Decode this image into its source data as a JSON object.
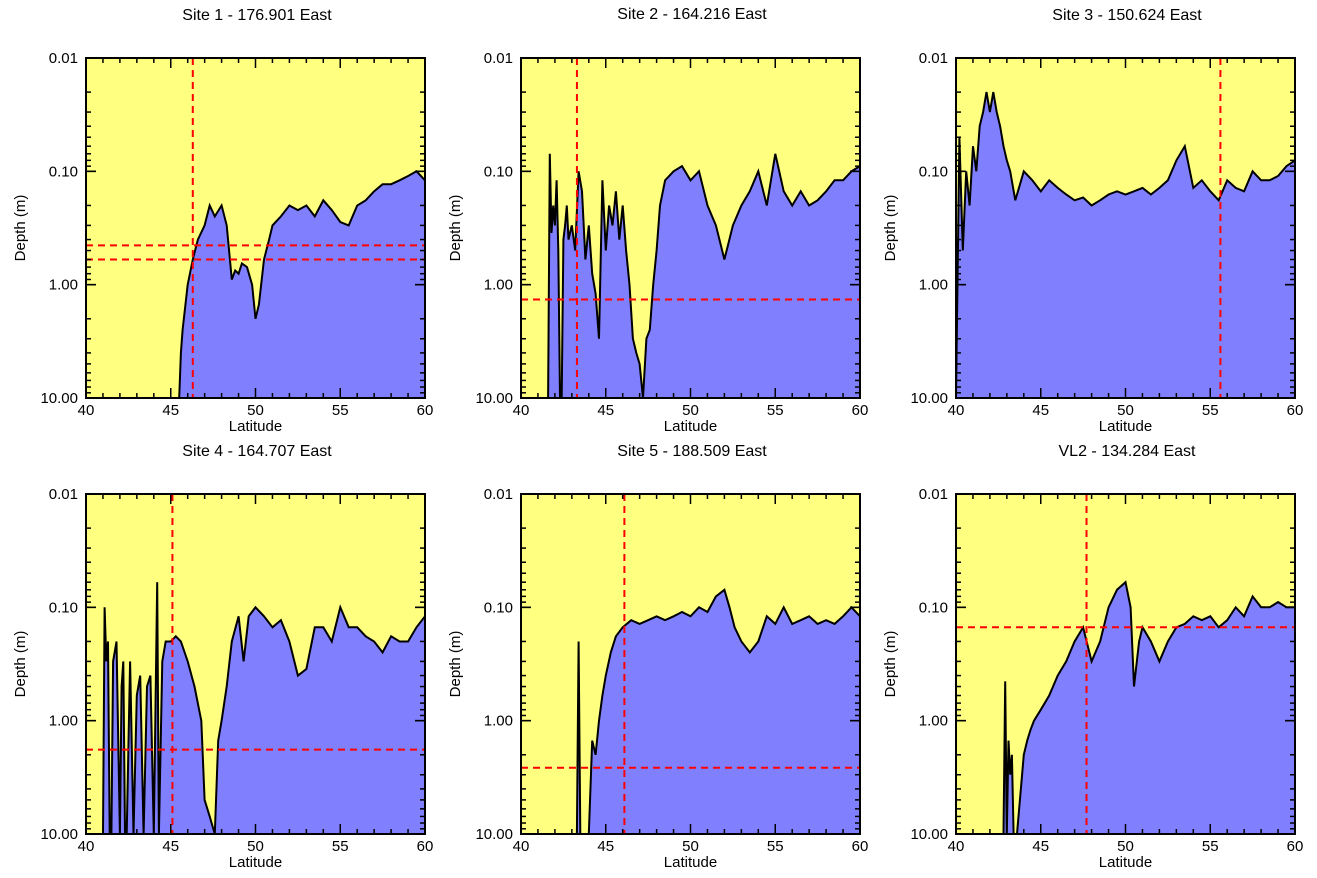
{
  "colors": {
    "background_fill": "#ffff80",
    "depth_fill": "#8080ff",
    "profile_line": "#000000",
    "guide_line": "#ff0000"
  },
  "chart_data": [
    {
      "type": "area",
      "title": "Site 1 - 176.901 East",
      "xlabel": "Latitude",
      "ylabel": "Depth (m)",
      "xlim": [
        40,
        60
      ],
      "ylim": [
        10.0,
        0.01
      ],
      "yscale": "log",
      "y_inverted": true,
      "xticks": [
        "40",
        "45",
        "50",
        "55",
        "60"
      ],
      "yticks": [
        "0.01",
        "0.10",
        "1.00",
        "10.00"
      ],
      "grid": false,
      "guides": {
        "vertical": [
          46.3
        ],
        "horizontal": [
          0.45,
          0.6
        ]
      },
      "x": [
        45.5,
        45.6,
        45.7,
        46.0,
        46.3,
        46.6,
        47.0,
        47.3,
        47.6,
        48.0,
        48.3,
        48.6,
        48.8,
        49.0,
        49.2,
        49.5,
        49.8,
        50.0,
        50.2,
        50.5,
        50.8,
        51.0,
        51.5,
        52.0,
        52.5,
        53.0,
        53.5,
        54.0,
        54.5,
        55.0,
        55.5,
        56.0,
        56.5,
        57.0,
        57.5,
        58.0,
        58.5,
        59.0,
        59.5,
        60.0
      ],
      "y": [
        10.0,
        4.0,
        2.5,
        1.0,
        0.6,
        0.4,
        0.3,
        0.2,
        0.25,
        0.2,
        0.3,
        0.9,
        0.75,
        0.8,
        0.65,
        0.7,
        1.0,
        2.0,
        1.5,
        0.6,
        0.4,
        0.3,
        0.25,
        0.2,
        0.22,
        0.2,
        0.25,
        0.18,
        0.22,
        0.28,
        0.3,
        0.2,
        0.18,
        0.15,
        0.13,
        0.13,
        0.12,
        0.11,
        0.1,
        0.12
      ]
    },
    {
      "type": "area",
      "title": "Site 2 - 164.216 East",
      "xlabel": "Latitude",
      "ylabel": "Depth (m)",
      "xlim": [
        40,
        60
      ],
      "ylim": [
        10.0,
        0.01
      ],
      "yscale": "log",
      "y_inverted": true,
      "xticks": [
        "40",
        "45",
        "50",
        "55",
        "60"
      ],
      "yticks": [
        "0.01",
        "0.10",
        "1.00",
        "10.00"
      ],
      "grid": false,
      "guides": {
        "vertical": [
          43.3
        ],
        "horizontal": [
          1.35
        ]
      },
      "x": [
        41.6,
        41.7,
        41.8,
        41.9,
        42.0,
        42.1,
        42.2,
        42.3,
        42.4,
        42.5,
        42.6,
        42.7,
        42.8,
        43.0,
        43.2,
        43.4,
        43.6,
        43.8,
        44.0,
        44.2,
        44.4,
        44.6,
        44.8,
        45.0,
        45.2,
        45.4,
        45.6,
        45.8,
        46.0,
        46.2,
        46.4,
        46.6,
        46.8,
        47.0,
        47.2,
        47.4,
        47.6,
        47.8,
        48.0,
        48.2,
        48.5,
        49.0,
        49.5,
        50.0,
        50.5,
        51.0,
        51.5,
        52.0,
        52.5,
        53.0,
        53.5,
        54.0,
        54.5,
        55.0,
        55.5,
        56.0,
        56.5,
        57.0,
        57.5,
        58.0,
        58.5,
        59.0,
        59.5,
        60.0
      ],
      "y": [
        10.0,
        0.07,
        0.35,
        0.2,
        0.3,
        0.12,
        0.5,
        10.0,
        10.0,
        0.4,
        0.3,
        0.2,
        0.4,
        0.3,
        0.5,
        0.1,
        0.15,
        0.6,
        0.3,
        0.8,
        1.2,
        3.0,
        0.12,
        0.5,
        0.2,
        0.3,
        0.15,
        0.4,
        0.2,
        0.5,
        1.0,
        3.0,
        4.0,
        5.0,
        10.0,
        3.0,
        2.5,
        1.0,
        0.5,
        0.2,
        0.12,
        0.1,
        0.09,
        0.12,
        0.1,
        0.2,
        0.3,
        0.6,
        0.3,
        0.2,
        0.15,
        0.1,
        0.2,
        0.07,
        0.15,
        0.2,
        0.15,
        0.2,
        0.18,
        0.15,
        0.12,
        0.12,
        0.1,
        0.09
      ]
    },
    {
      "type": "area",
      "title": "Site 3 - 150.624 East",
      "xlabel": "Latitude",
      "ylabel": "Depth (m)",
      "xlim": [
        40,
        60
      ],
      "ylim": [
        10.0,
        0.01
      ],
      "yscale": "log",
      "y_inverted": true,
      "xticks": [
        "40",
        "45",
        "50",
        "55",
        "60"
      ],
      "yticks": [
        "0.01",
        "0.10",
        "1.00",
        "10.00"
      ],
      "grid": false,
      "guides": {
        "vertical": [
          55.6
        ],
        "horizontal": []
      },
      "x": [
        40.0,
        40.2,
        40.4,
        40.6,
        40.8,
        41.0,
        41.2,
        41.4,
        41.6,
        41.8,
        42.0,
        42.2,
        42.4,
        42.6,
        42.8,
        43.0,
        43.2,
        43.5,
        44.0,
        44.5,
        45.0,
        45.5,
        46.0,
        46.5,
        47.0,
        47.5,
        48.0,
        48.5,
        49.0,
        49.5,
        50.0,
        50.5,
        51.0,
        51.5,
        52.0,
        52.5,
        53.0,
        53.5,
        54.0,
        54.5,
        55.0,
        55.5,
        56.0,
        56.5,
        57.0,
        57.5,
        58.0,
        58.5,
        59.0,
        59.5,
        60.0
      ],
      "y": [
        10.0,
        0.05,
        0.5,
        0.1,
        0.2,
        0.06,
        0.1,
        0.04,
        0.03,
        0.02,
        0.03,
        0.02,
        0.03,
        0.04,
        0.06,
        0.08,
        0.1,
        0.18,
        0.1,
        0.12,
        0.15,
        0.12,
        0.14,
        0.16,
        0.18,
        0.17,
        0.2,
        0.18,
        0.16,
        0.15,
        0.16,
        0.15,
        0.14,
        0.16,
        0.14,
        0.12,
        0.08,
        0.06,
        0.14,
        0.12,
        0.15,
        0.18,
        0.12,
        0.14,
        0.15,
        0.1,
        0.12,
        0.12,
        0.11,
        0.09,
        0.08
      ]
    },
    {
      "type": "area",
      "title": "Site 4 - 164.707 East",
      "xlabel": "Latitude",
      "ylabel": "Depth (m)",
      "xlim": [
        40,
        60
      ],
      "ylim": [
        10.0,
        0.01
      ],
      "yscale": "log",
      "y_inverted": true,
      "xticks": [
        "40",
        "45",
        "50",
        "55",
        "60"
      ],
      "yticks": [
        "0.01",
        "0.10",
        "1.00",
        "10.00"
      ],
      "grid": false,
      "guides": {
        "vertical": [
          45.1
        ],
        "horizontal": [
          1.8
        ]
      },
      "x": [
        41.0,
        41.1,
        41.2,
        41.3,
        41.4,
        41.5,
        41.6,
        41.8,
        42.0,
        42.1,
        42.2,
        42.3,
        42.4,
        42.6,
        42.8,
        43.0,
        43.2,
        43.4,
        43.6,
        43.8,
        44.0,
        44.2,
        44.3,
        44.5,
        44.7,
        45.0,
        45.3,
        45.6,
        46.0,
        46.4,
        46.8,
        47.0,
        47.3,
        47.6,
        47.8,
        48.0,
        48.3,
        48.6,
        49.0,
        49.3,
        49.6,
        50.0,
        50.5,
        51.0,
        51.5,
        52.0,
        52.5,
        53.0,
        53.5,
        54.0,
        54.5,
        55.0,
        55.5,
        56.0,
        56.5,
        57.0,
        57.5,
        58.0,
        58.5,
        59.0,
        59.5,
        60.0
      ],
      "y": [
        10.0,
        0.1,
        0.3,
        0.2,
        10.0,
        10.0,
        0.3,
        0.2,
        10.0,
        0.5,
        0.3,
        10.0,
        10.0,
        0.3,
        10.0,
        0.6,
        0.4,
        10.0,
        0.5,
        0.4,
        10.0,
        0.06,
        10.0,
        0.3,
        0.2,
        0.2,
        0.18,
        0.2,
        0.3,
        0.5,
        1.0,
        5.0,
        7.0,
        10.0,
        1.5,
        1.0,
        0.5,
        0.2,
        0.12,
        0.3,
        0.12,
        0.1,
        0.12,
        0.15,
        0.13,
        0.2,
        0.4,
        0.35,
        0.15,
        0.15,
        0.2,
        0.1,
        0.15,
        0.15,
        0.18,
        0.2,
        0.25,
        0.18,
        0.2,
        0.2,
        0.15,
        0.12
      ]
    },
    {
      "type": "area",
      "title": "Site 5 - 188.509 East",
      "xlabel": "Latitude",
      "ylabel": "Depth (m)",
      "xlim": [
        40,
        60
      ],
      "ylim": [
        10.0,
        0.01
      ],
      "yscale": "log",
      "y_inverted": true,
      "xticks": [
        "40",
        "45",
        "50",
        "55",
        "60"
      ],
      "yticks": [
        "0.01",
        "0.10",
        "1.00",
        "10.00"
      ],
      "grid": false,
      "guides": {
        "vertical": [
          46.1
        ],
        "horizontal": [
          2.6
        ]
      },
      "x": [
        43.3,
        43.4,
        43.5,
        43.6,
        44.0,
        44.2,
        44.4,
        44.6,
        44.8,
        45.0,
        45.3,
        45.6,
        46.0,
        46.5,
        47.0,
        47.5,
        48.0,
        48.5,
        49.0,
        49.5,
        50.0,
        50.5,
        51.0,
        51.5,
        52.0,
        52.3,
        52.6,
        53.0,
        53.5,
        54.0,
        54.5,
        55.0,
        55.5,
        56.0,
        56.5,
        57.0,
        57.5,
        58.0,
        58.5,
        59.0,
        59.5,
        60.0
      ],
      "y": [
        10.0,
        0.2,
        10.0,
        10.0,
        10.0,
        1.5,
        2.0,
        1.0,
        0.6,
        0.4,
        0.25,
        0.18,
        0.15,
        0.13,
        0.14,
        0.13,
        0.12,
        0.13,
        0.12,
        0.11,
        0.12,
        0.1,
        0.11,
        0.08,
        0.07,
        0.1,
        0.15,
        0.2,
        0.25,
        0.2,
        0.12,
        0.14,
        0.1,
        0.14,
        0.13,
        0.12,
        0.14,
        0.13,
        0.14,
        0.12,
        0.1,
        0.12
      ]
    },
    {
      "type": "area",
      "title": "VL2  - 134.284 East",
      "xlabel": "Latitude",
      "ylabel": "Depth (m)",
      "xlim": [
        40,
        60
      ],
      "ylim": [
        10.0,
        0.01
      ],
      "yscale": "log",
      "y_inverted": true,
      "xticks": [
        "40",
        "45",
        "50",
        "55",
        "60"
      ],
      "yticks": [
        "0.01",
        "0.10",
        "1.00",
        "10.00"
      ],
      "grid": false,
      "guides": {
        "vertical": [
          47.7
        ],
        "horizontal": [
          0.15
        ]
      },
      "x": [
        42.8,
        42.9,
        43.0,
        43.1,
        43.2,
        43.3,
        43.4,
        43.5,
        43.6,
        44.0,
        44.2,
        44.4,
        44.6,
        45.0,
        45.5,
        46.0,
        46.5,
        47.0,
        47.5,
        48.0,
        48.5,
        49.0,
        49.5,
        50.0,
        50.3,
        50.5,
        50.8,
        51.0,
        51.5,
        52.0,
        52.5,
        53.0,
        53.5,
        54.0,
        54.5,
        55.0,
        55.5,
        56.0,
        56.5,
        57.0,
        57.5,
        58.0,
        58.5,
        59.0,
        59.5,
        60.0
      ],
      "y": [
        10.0,
        0.45,
        10.0,
        1.5,
        3.0,
        2.0,
        10.0,
        10.0,
        10.0,
        2.0,
        1.5,
        1.2,
        1.0,
        0.8,
        0.6,
        0.4,
        0.3,
        0.2,
        0.15,
        0.3,
        0.2,
        0.1,
        0.07,
        0.06,
        0.1,
        0.5,
        0.2,
        0.15,
        0.2,
        0.3,
        0.2,
        0.15,
        0.14,
        0.12,
        0.13,
        0.12,
        0.15,
        0.13,
        0.1,
        0.12,
        0.08,
        0.1,
        0.1,
        0.09,
        0.1,
        0.1
      ]
    }
  ]
}
